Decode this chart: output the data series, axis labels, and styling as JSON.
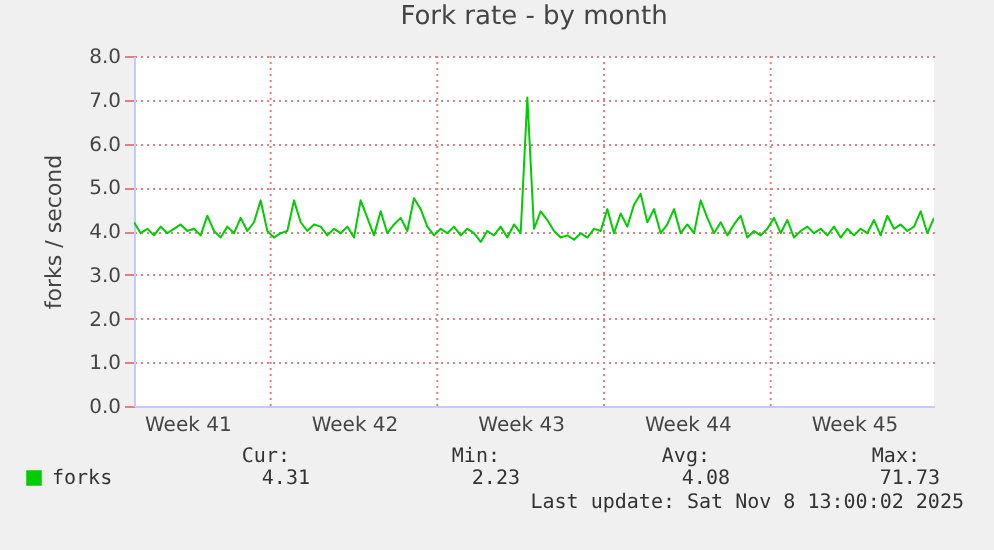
{
  "chart_data": {
    "type": "line",
    "title": "Fork rate - by month",
    "ylabel": "forks / second",
    "categories": [
      null,
      null,
      null,
      null,
      null,
      null,
      null,
      null,
      "Week 41",
      null,
      null,
      null,
      null,
      null,
      null,
      null,
      null,
      null,
      null,
      null,
      null,
      null,
      null,
      null,
      null,
      null,
      null,
      null,
      null,
      null,
      null,
      null,
      null,
      "Week 42",
      null,
      null,
      null,
      null,
      null,
      null,
      null,
      null,
      null,
      null,
      null,
      null,
      null,
      null,
      null,
      null,
      null,
      null,
      null,
      null,
      null,
      null,
      null,
      null,
      "Week 43",
      null,
      null,
      null,
      null,
      null,
      null,
      null,
      null,
      null,
      null,
      null,
      null,
      null,
      null,
      null,
      null,
      null,
      null,
      null,
      null,
      null,
      null,
      null,
      null,
      "Week 44",
      null,
      null,
      null,
      null,
      null,
      null,
      null,
      null,
      null,
      null,
      null,
      null,
      null,
      null,
      null,
      null,
      null,
      null,
      null,
      null,
      null,
      null,
      null,
      null,
      "Week 45",
      null,
      null,
      null,
      null,
      null,
      null,
      null,
      null,
      null,
      null,
      null,
      null
    ],
    "series": [
      {
        "name": "forks",
        "color": "#00cc00",
        "values": [
          4.2,
          3.95,
          4.05,
          3.9,
          4.1,
          3.95,
          4.05,
          4.15,
          4.0,
          4.05,
          3.9,
          4.35,
          4.0,
          3.85,
          4.1,
          3.95,
          4.3,
          4.0,
          4.2,
          4.7,
          4.0,
          3.85,
          3.95,
          4.0,
          4.7,
          4.2,
          4.0,
          4.15,
          4.1,
          3.9,
          4.05,
          3.95,
          4.1,
          3.85,
          4.7,
          4.3,
          3.9,
          4.45,
          3.95,
          4.15,
          4.3,
          4.0,
          4.75,
          4.5,
          4.1,
          3.9,
          4.05,
          3.95,
          4.1,
          3.9,
          4.05,
          3.95,
          3.75,
          4.0,
          3.9,
          4.1,
          3.85,
          4.15,
          3.95,
          7.05,
          4.05,
          4.45,
          4.25,
          4.0,
          3.85,
          3.9,
          3.8,
          3.95,
          3.85,
          4.05,
          4.0,
          4.5,
          3.95,
          4.4,
          4.1,
          4.6,
          4.85,
          4.2,
          4.5,
          3.95,
          4.15,
          4.5,
          3.95,
          4.15,
          3.95,
          4.7,
          4.3,
          3.95,
          4.2,
          3.9,
          4.15,
          4.35,
          3.85,
          4.0,
          3.9,
          4.05,
          4.3,
          3.95,
          4.25,
          3.85,
          4.0,
          4.1,
          3.95,
          4.05,
          3.9,
          4.1,
          3.85,
          4.05,
          3.9,
          4.05,
          3.95,
          4.25,
          3.9,
          4.35,
          4.05,
          4.15,
          4.0,
          4.1,
          4.45,
          3.95,
          4.3
        ]
      }
    ],
    "ylim": [
      0,
      8
    ],
    "yticks": [
      {
        "value": 0,
        "label": "0.0"
      },
      {
        "value": 1,
        "label": "1.0"
      },
      {
        "value": 2,
        "label": "2.0"
      },
      {
        "value": 3,
        "label": "3.0"
      },
      {
        "value": 4,
        "label": "4.0"
      },
      {
        "value": 5,
        "label": "5.0"
      },
      {
        "value": 6,
        "label": "6.0"
      },
      {
        "value": 7,
        "label": "7.0"
      },
      {
        "value": 8,
        "label": "8.0"
      }
    ],
    "grid": true,
    "legend": "bottom left",
    "marker": "none",
    "line_style": "solid",
    "annotations": [
      "Cur:",
      "4.31",
      "Min:",
      "2.23",
      "Avg:",
      "4.08",
      "Max:",
      "71.73",
      "Last update: Sat Nov  8 13:00:02 2025"
    ]
  }
}
